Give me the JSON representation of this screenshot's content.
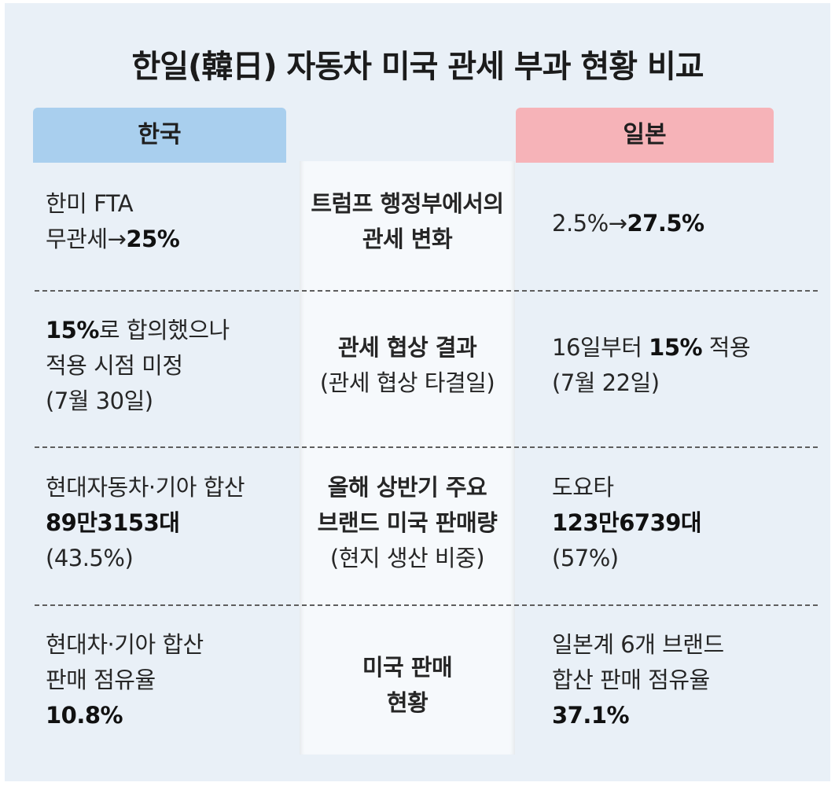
{
  "title": "한일(韓日) 자동차 미국 관세 부과 현황 비교",
  "headers": {
    "korea": "한국",
    "japan": "일본"
  },
  "rows": [
    {
      "korea": {
        "line1": "한미 FTA",
        "line2_prefix": "무관세→",
        "line2_bold": "25%"
      },
      "middle": {
        "line1": "트럼프 행정부에서의",
        "line2": "관세 변화"
      },
      "japan": {
        "line1_prefix": "2.5%→",
        "line1_bold": "27.5%"
      }
    },
    {
      "korea": {
        "line1_bold": "15%",
        "line1_suffix": "로 합의했으나",
        "line2": "적용 시점 미정",
        "line3": "(7월 30일)"
      },
      "middle": {
        "line1": "관세 협상 결과",
        "line2": "(관세 협상 타결일)"
      },
      "japan": {
        "line1_prefix": "16일부터 ",
        "line1_bold": "15%",
        "line1_suffix": " 적용",
        "line2": "(7월 22일)"
      }
    },
    {
      "korea": {
        "line1": "현대자동차·기아 합산",
        "line2_bold": "89만3153대",
        "line3": "(43.5%)"
      },
      "middle": {
        "line1": "올해 상반기 주요",
        "line2": "브랜드 미국 판매량",
        "line3": "(현지 생산 비중)"
      },
      "japan": {
        "line1": "도요타",
        "line2_bold": "123만6739대",
        "line3": "(57%)"
      }
    },
    {
      "korea": {
        "line1": "현대차·기아 합산",
        "line2": "판매 점유율",
        "line3_bold": "10.8%"
      },
      "middle": {
        "line1": "미국 판매",
        "line2": "현황"
      },
      "japan": {
        "line1": "일본계 6개 브랜드",
        "line2": "합산 판매 점유율",
        "line3_bold": "37.1%"
      }
    }
  ]
}
